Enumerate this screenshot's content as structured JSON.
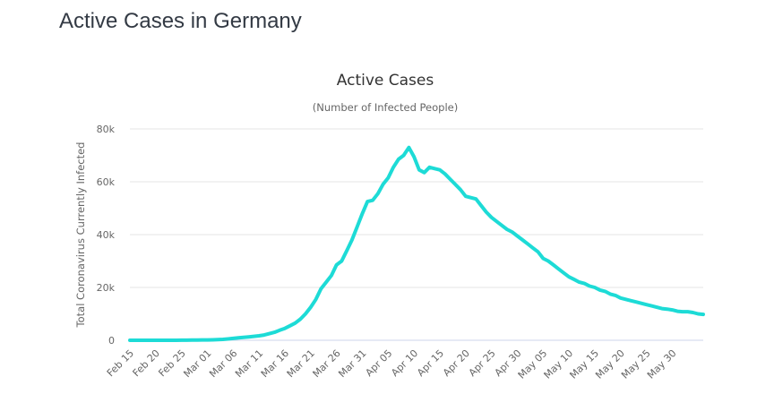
{
  "page": {
    "title": "Active Cases in Germany"
  },
  "colors": {
    "line": "#1ddbd6",
    "grid": "#e6e6e6",
    "axis": "#ccd6eb"
  },
  "chart_data": {
    "type": "line",
    "title": "Active Cases",
    "subtitle": "(Number of Infected People)",
    "xlabel": "",
    "ylabel": "Total Coronavirus Currently Infected",
    "ylim": [
      0,
      80000
    ],
    "yticks": [
      0,
      20000,
      40000,
      60000,
      80000
    ],
    "ytick_labels": [
      "0",
      "20k",
      "40k",
      "60k",
      "80k"
    ],
    "xtick_labels": [
      "Feb 15",
      "Feb 20",
      "Feb 25",
      "Mar 01",
      "Mar 06",
      "Mar 11",
      "Mar 16",
      "Mar 21",
      "Mar 26",
      "Mar 31",
      "Apr 05",
      "Apr 10",
      "Apr 15",
      "Apr 20",
      "Apr 25",
      "Apr 30",
      "May 05",
      "May 10",
      "May 15",
      "May 20",
      "May 25",
      "May 30"
    ],
    "grid": true,
    "legend": "none",
    "start_date": "Feb 15",
    "series": [
      {
        "name": "Active Cases",
        "values": [
          16,
          16,
          16,
          16,
          16,
          16,
          16,
          16,
          16,
          16,
          30,
          40,
          60,
          100,
          130,
          150,
          180,
          240,
          350,
          500,
          700,
          900,
          1100,
          1300,
          1500,
          1700,
          2000,
          2500,
          3000,
          3800,
          4500,
          5500,
          6500,
          8000,
          10000,
          12500,
          15500,
          19500,
          22000,
          24500,
          28500,
          30000,
          34000,
          38000,
          43000,
          48000,
          52500,
          53000,
          55500,
          59000,
          61500,
          65500,
          68500,
          70000,
          73000,
          69500,
          64500,
          63500,
          65500,
          65000,
          64500,
          63000,
          61000,
          59000,
          57000,
          54500,
          54000,
          53500,
          51000,
          48500,
          46500,
          45000,
          43500,
          42000,
          41000,
          39500,
          38000,
          36500,
          35000,
          33500,
          31000,
          30000,
          28500,
          27000,
          25500,
          24000,
          23000,
          22000,
          21500,
          20500,
          20000,
          19000,
          18500,
          17500,
          17000,
          16000,
          15500,
          15000,
          14500,
          14000,
          13500,
          13000,
          12500,
          12000,
          11800,
          11500,
          11000,
          10800,
          10800,
          10500,
          10000,
          9800
        ]
      }
    ]
  }
}
